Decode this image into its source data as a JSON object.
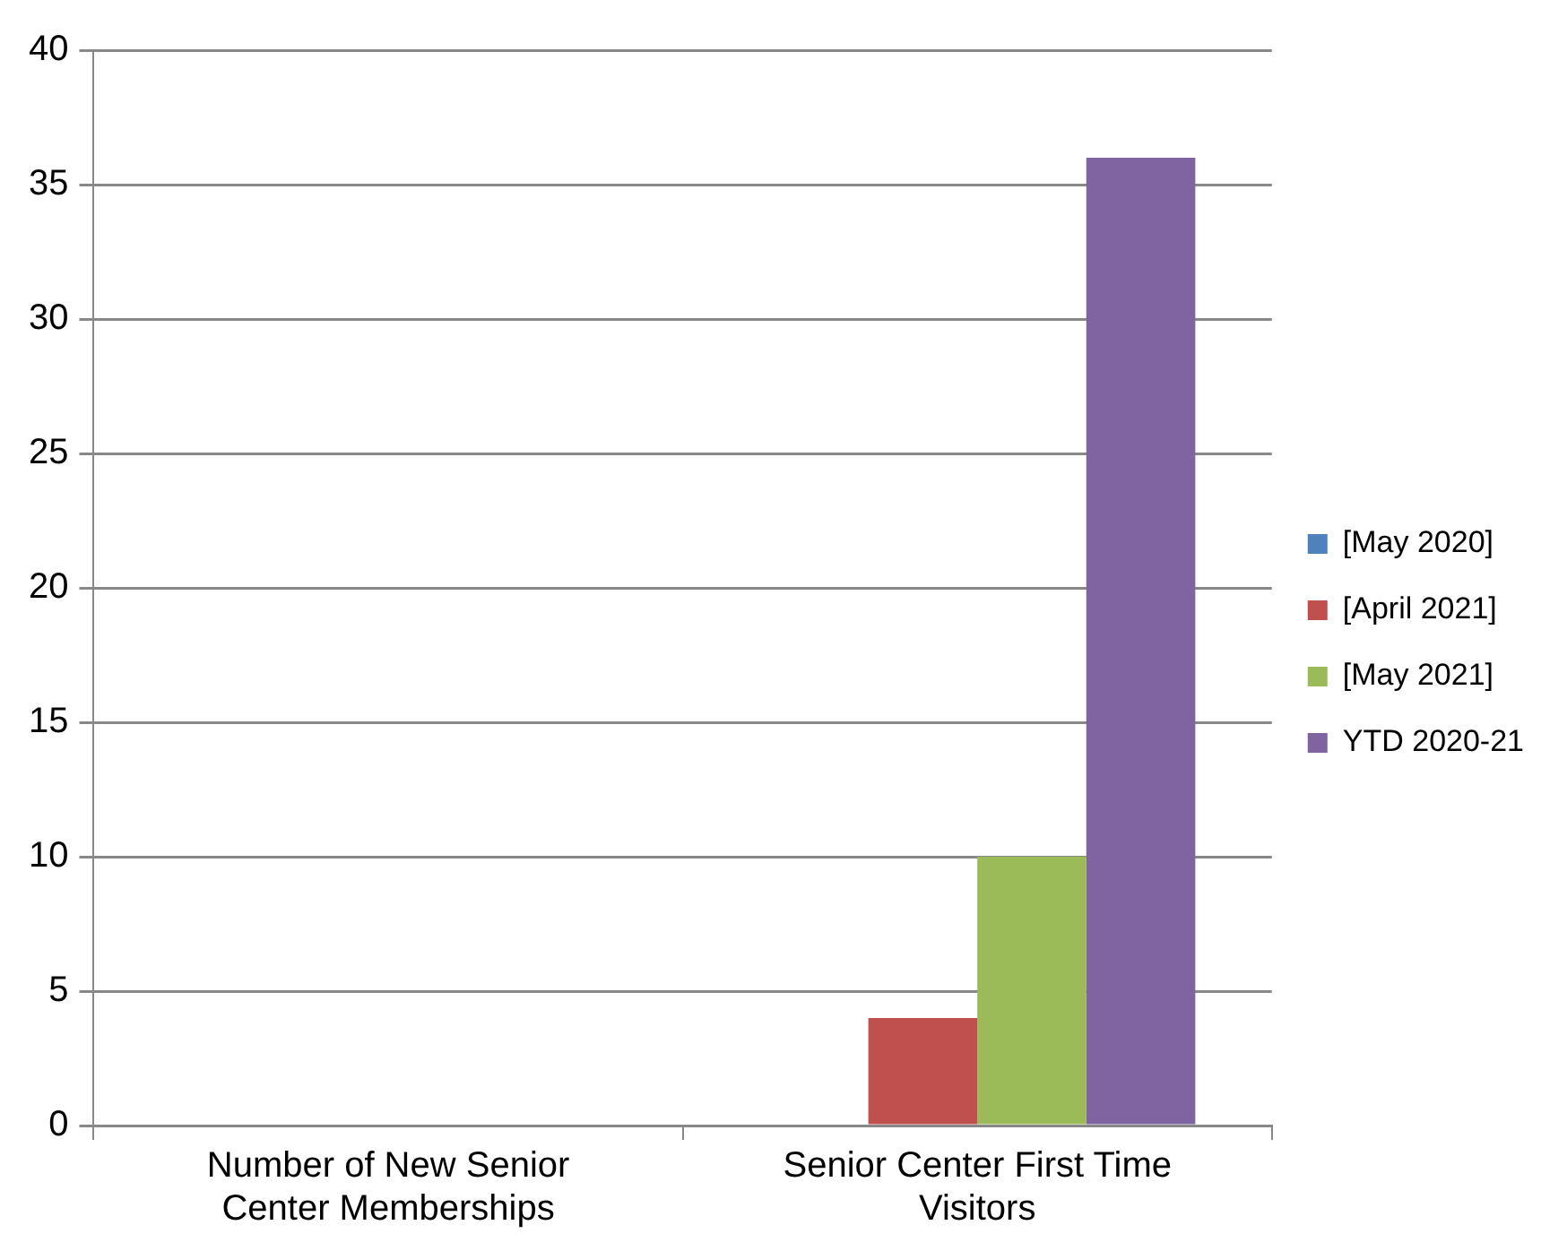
{
  "chart_data": {
    "type": "bar",
    "categories": [
      "Number of New Senior Center Memberships",
      "Senior Center First Time Visitors"
    ],
    "series": [
      {
        "name": "[May 2020]",
        "color": "#4f81bd",
        "values": [
          0,
          0
        ]
      },
      {
        "name": "[April 2021]",
        "color": "#c0504d",
        "values": [
          0,
          4
        ]
      },
      {
        "name": "[May 2021]",
        "color": "#9bbb59",
        "values": [
          0,
          10
        ]
      },
      {
        "name": "YTD 2020-21",
        "color": "#8064a2",
        "values": [
          0,
          36
        ]
      }
    ],
    "ylim": [
      0,
      40
    ],
    "yticks": [
      0,
      5,
      10,
      15,
      20,
      25,
      30,
      35,
      40
    ],
    "grid": "y",
    "legend": "right"
  }
}
